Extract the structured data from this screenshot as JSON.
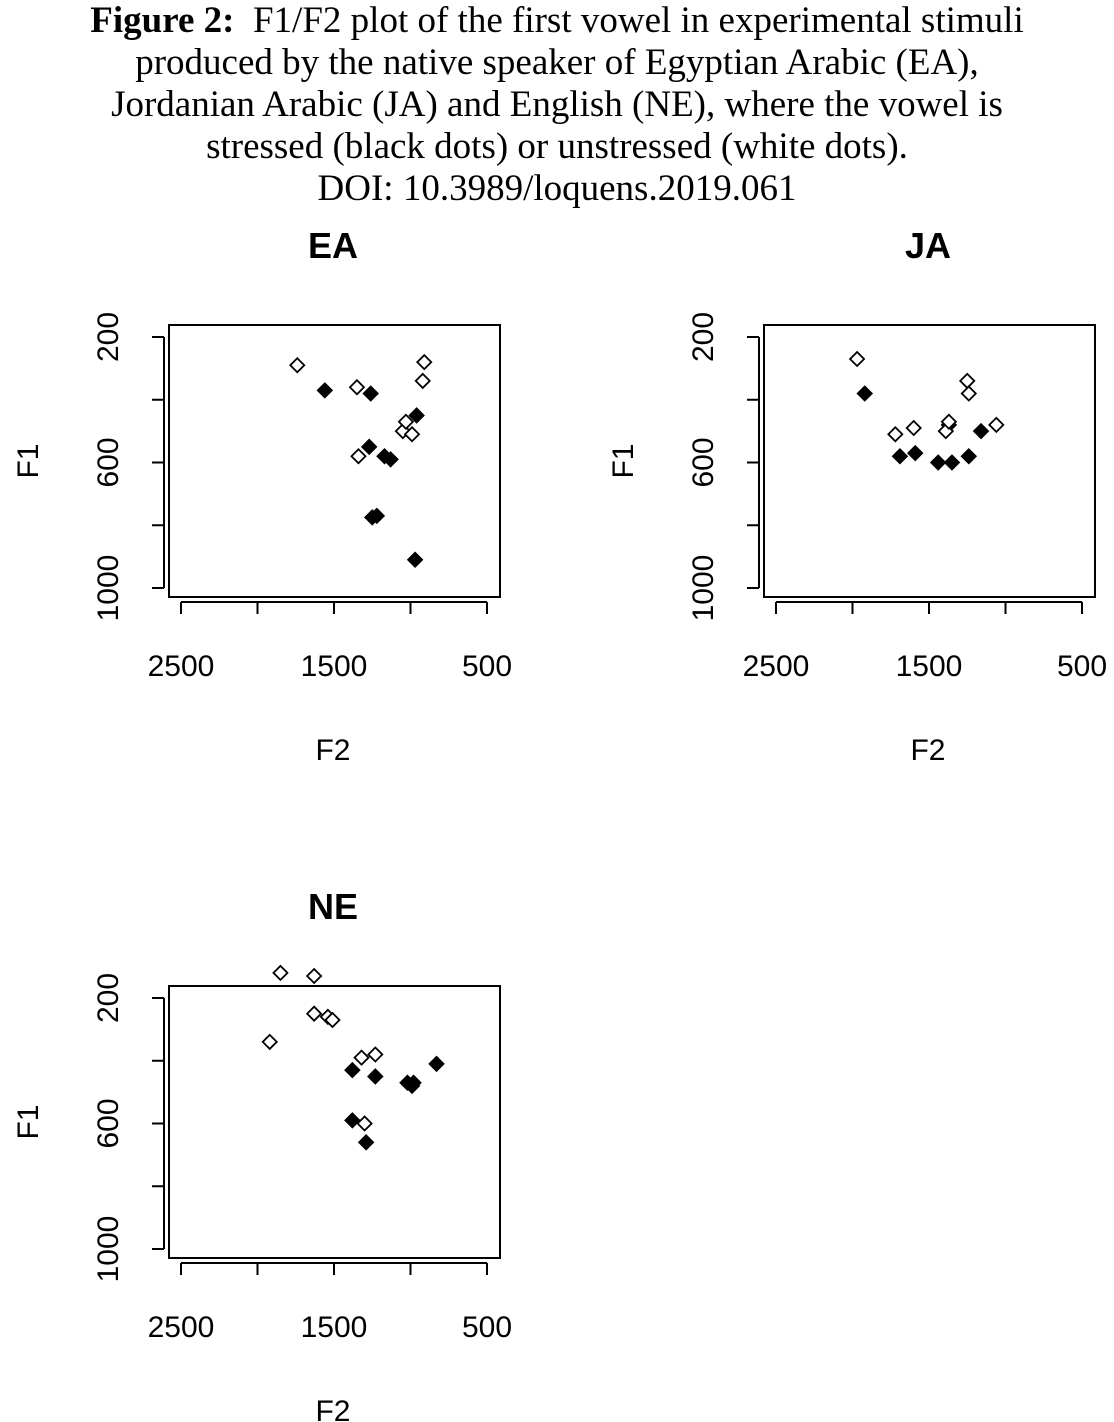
{
  "caption": {
    "label": "Figure 2:",
    "line1": "F1/F2 plot of the first vowel in experimental stimuli",
    "line2": "produced by the native speaker of Egyptian Arabic (EA),",
    "line3": "Jordanian Arabic (JA) and English (NE), where the vowel is",
    "line4": "stressed (black dots) or unstressed (white dots).",
    "line5": "DOI: 10.3989/loquens.2019.061"
  },
  "colors": {
    "stressed": "#000000",
    "unstressed": "#ffffff",
    "stroke": "#000000"
  },
  "chart_data": [
    {
      "type": "scatter",
      "title": "EA",
      "xlabel": "F2",
      "ylabel": "F1",
      "xlim": [
        2500,
        500
      ],
      "ylim": [
        1000,
        200
      ],
      "x_ticks": [
        "2500",
        "1500",
        "500"
      ],
      "y_ticks": [
        "200",
        "600",
        "1000"
      ],
      "series": [
        {
          "name": "stressed",
          "points": [
            [
              1560,
              370
            ],
            [
              1260,
              380
            ],
            [
              1270,
              550
            ],
            [
              1170,
              580
            ],
            [
              1130,
              590
            ],
            [
              960,
              450
            ],
            [
              1250,
              775
            ],
            [
              1220,
              770
            ],
            [
              970,
              910
            ]
          ]
        },
        {
          "name": "unstressed",
          "points": [
            [
              1740,
              290
            ],
            [
              1350,
              360
            ],
            [
              910,
              280
            ],
            [
              920,
              340
            ],
            [
              1050,
              500
            ],
            [
              1030,
              470
            ],
            [
              990,
              510
            ],
            [
              1340,
              580
            ]
          ]
        }
      ]
    },
    {
      "type": "scatter",
      "title": "JA",
      "xlabel": "F2",
      "ylabel": "F1",
      "xlim": [
        2500,
        500
      ],
      "ylim": [
        1000,
        200
      ],
      "x_ticks": [
        "2500",
        "1500",
        "500"
      ],
      "y_ticks": [
        "200",
        "600",
        "1000"
      ],
      "series": [
        {
          "name": "stressed",
          "points": [
            [
              1920,
              380
            ],
            [
              1690,
              580
            ],
            [
              1590,
              570
            ],
            [
              1440,
              600
            ],
            [
              1350,
              600
            ],
            [
              1370,
              480
            ],
            [
              1240,
              580
            ],
            [
              1160,
              500
            ]
          ]
        },
        {
          "name": "unstressed",
          "points": [
            [
              1970,
              270
            ],
            [
              1720,
              510
            ],
            [
              1600,
              490
            ],
            [
              1390,
              500
            ],
            [
              1370,
              470
            ],
            [
              1250,
              340
            ],
            [
              1240,
              380
            ],
            [
              1060,
              480
            ]
          ]
        }
      ]
    },
    {
      "type": "scatter",
      "title": "NE",
      "xlabel": "F2",
      "ylabel": "F1",
      "xlim": [
        2500,
        500
      ],
      "ylim": [
        1000,
        200
      ],
      "x_ticks": [
        "2500",
        "1500",
        "500"
      ],
      "y_ticks": [
        "200",
        "600",
        "1000"
      ],
      "series": [
        {
          "name": "stressed",
          "points": [
            [
              1380,
              430
            ],
            [
              1230,
              450
            ],
            [
              1020,
              470
            ],
            [
              990,
              480
            ],
            [
              980,
              470
            ],
            [
              830,
              410
            ],
            [
              1380,
              590
            ],
            [
              1290,
              660
            ]
          ]
        },
        {
          "name": "unstressed",
          "points": [
            [
              1920,
              340
            ],
            [
              1850,
              120
            ],
            [
              1630,
              130
            ],
            [
              1630,
              250
            ],
            [
              1540,
              260
            ],
            [
              1510,
              270
            ],
            [
              1320,
              390
            ],
            [
              1230,
              380
            ],
            [
              1300,
              600
            ]
          ]
        }
      ]
    }
  ]
}
